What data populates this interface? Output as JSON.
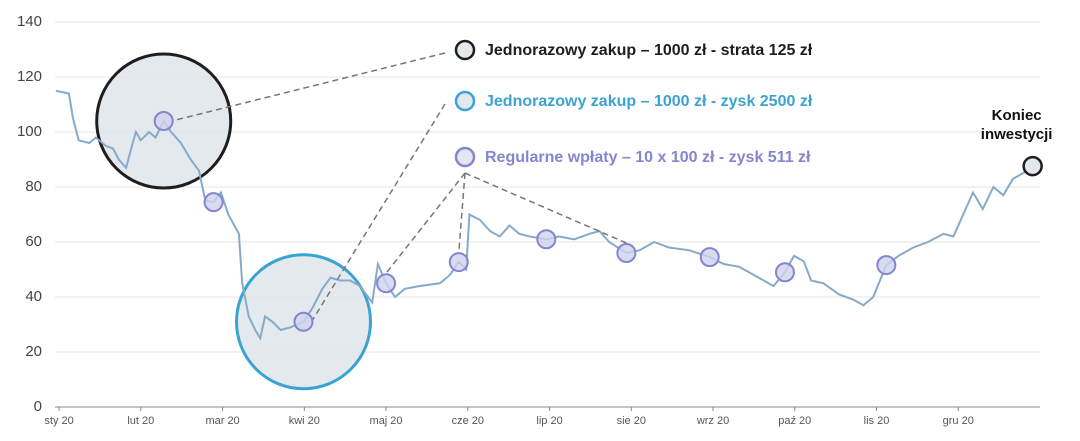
{
  "chart_data": {
    "type": "line",
    "ylim": [
      0,
      140
    ],
    "yticks": [
      0,
      20,
      40,
      60,
      80,
      100,
      120,
      140
    ],
    "xlim": [
      -0.05,
      12
    ],
    "xticks": [
      {
        "value": 0,
        "label": "sty 20"
      },
      {
        "value": 1,
        "label": "lut 20"
      },
      {
        "value": 2,
        "label": "mar 20"
      },
      {
        "value": 3,
        "label": "kwi 20"
      },
      {
        "value": 4,
        "label": "maj 20"
      },
      {
        "value": 5,
        "label": "cze 20"
      },
      {
        "value": 6,
        "label": "lip 20"
      },
      {
        "value": 7,
        "label": "sie 20"
      },
      {
        "value": 8,
        "label": "wrz 20"
      },
      {
        "value": 9,
        "label": "paź 20"
      },
      {
        "value": 10,
        "label": "lis 20"
      },
      {
        "value": 11,
        "label": "gru 20"
      }
    ],
    "grid": true,
    "series": [
      {
        "color": "#86aac8",
        "x": [
          -0.04,
          0.12,
          0.17,
          0.24,
          0.37,
          0.45,
          0.57,
          0.66,
          0.73,
          0.82,
          0.9,
          0.94,
          1.0,
          1.1,
          1.18,
          1.28,
          1.37,
          1.49,
          1.61,
          1.71,
          1.79,
          1.89,
          1.98,
          2.07,
          2.2,
          2.24,
          2.32,
          2.4,
          2.46,
          2.52,
          2.61,
          2.71,
          2.83,
          2.99,
          3.1,
          3.22,
          3.32,
          3.44,
          3.56,
          3.68,
          3.83,
          3.9,
          4.0,
          4.11,
          4.23,
          4.41,
          4.66,
          4.78,
          4.89,
          4.98,
          5.02,
          5.15,
          5.27,
          5.39,
          5.51,
          5.63,
          5.76,
          5.96,
          6.12,
          6.3,
          6.49,
          6.61,
          6.73,
          6.94,
          7.1,
          7.28,
          7.46,
          7.71,
          7.96,
          8.13,
          8.32,
          8.56,
          8.74,
          8.88,
          8.99,
          9.11,
          9.2,
          9.35,
          9.54,
          9.72,
          9.84,
          9.96,
          10.12,
          10.27,
          10.45,
          10.63,
          10.82,
          10.94,
          11.06,
          11.18,
          11.3,
          11.43,
          11.55,
          11.67,
          11.79,
          11.91
        ],
        "values": [
          115,
          114,
          105,
          97,
          96,
          98,
          95,
          94,
          90,
          87,
          96,
          100,
          97,
          100,
          98,
          104,
          100,
          96,
          90,
          86,
          75,
          74.5,
          78,
          70,
          63,
          45,
          33,
          28,
          25,
          33,
          31,
          28,
          29,
          31,
          36,
          43,
          47,
          46,
          46,
          44,
          38,
          52,
          45,
          40,
          43,
          44,
          45,
          48,
          52.7,
          50,
          70,
          68,
          64,
          62,
          66,
          63,
          62,
          61,
          62,
          61,
          63,
          64,
          60,
          56,
          57,
          60,
          58,
          57,
          54.5,
          52,
          51,
          47,
          44,
          49,
          55,
          53,
          46,
          45,
          41,
          39,
          37,
          40,
          51.6,
          55,
          58,
          60,
          63,
          62,
          70,
          78,
          72,
          80,
          77,
          83,
          85,
          87.6
        ]
      }
    ],
    "annotations": [
      {
        "label": "Jednorazowy zakup – 1000 zł - strata 125 zł",
        "color": "#1e1e1e",
        "x": [
          1.28
        ],
        "values": [
          104
        ]
      },
      {
        "label": "Jednorazowy zakup – 1000 zł - zysk 2500 zł",
        "color": "#3aa3d4",
        "x": [
          2.99
        ],
        "values": [
          31
        ]
      },
      {
        "label": "Regularne wpłaty  – 10 x 100 zł - zysk 511 zł",
        "color": "#8585d0",
        "x": [
          1.28,
          1.89,
          2.99,
          4.0,
          4.89,
          5.96,
          6.94,
          7.96,
          8.88,
          10.12
        ],
        "values": [
          104,
          74.5,
          31,
          45,
          52.7,
          61,
          56,
          54.5,
          49,
          51.6
        ]
      }
    ],
    "end_point": {
      "label": [
        "Koniec",
        "inwestycji"
      ],
      "x": 11.91,
      "value": 87.6
    }
  }
}
